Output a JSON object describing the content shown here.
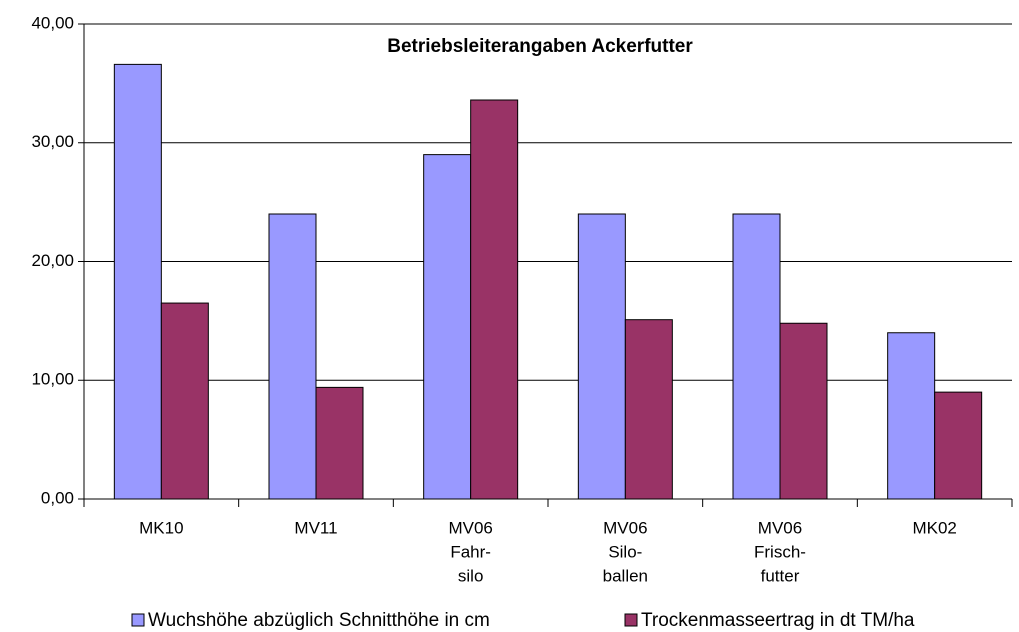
{
  "chart_data": {
    "type": "bar",
    "title": "Betriebsleiterangaben Ackerfutter",
    "categories": [
      [
        "MK10"
      ],
      [
        "MV11"
      ],
      [
        "MV06",
        "Fahr-",
        "silo"
      ],
      [
        "MV06",
        "Silo-",
        "ballen"
      ],
      [
        "MV06",
        "Frisch-",
        "futter"
      ],
      [
        "MK02"
      ]
    ],
    "series": [
      {
        "name": "Wuchshöhe abzüglich Schnitthöhe in cm",
        "color": "#9999ff",
        "values": [
          36.6,
          24,
          29,
          24,
          24,
          14
        ]
      },
      {
        "name": "Trockenmasseertrag in dt TM/ha",
        "color": "#993366",
        "values": [
          16.5,
          9.4,
          33.6,
          15.1,
          14.8,
          9
        ]
      }
    ],
    "ylim": [
      0,
      40
    ],
    "yticks": [
      {
        "value": 0,
        "label": "0,00"
      },
      {
        "value": 10,
        "label": "10,00"
      },
      {
        "value": 20,
        "label": "20,00"
      },
      {
        "value": 30,
        "label": "30,00"
      },
      {
        "value": 40,
        "label": "40,00"
      }
    ],
    "grid": true,
    "legend": "bottom"
  }
}
